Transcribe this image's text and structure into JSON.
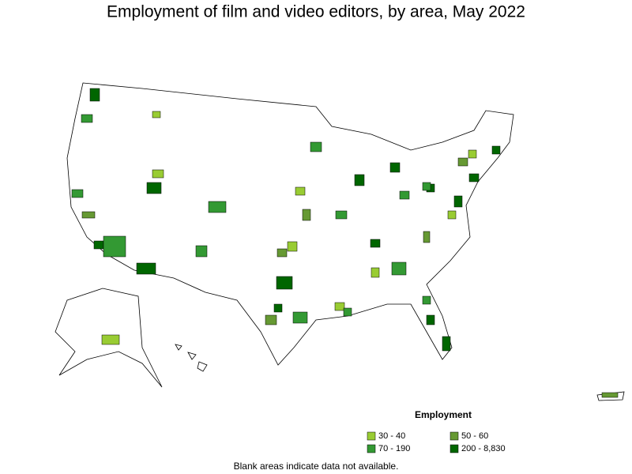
{
  "title": "Employment of film and video editors, by area, May 2022",
  "legend": {
    "title": "Employment",
    "items": [
      {
        "label": "30 - 40",
        "color": "#99cc33"
      },
      {
        "label": "50 - 60",
        "color": "#669933"
      },
      {
        "label": "70 - 190",
        "color": "#339933"
      },
      {
        "label": "200 - 8,830",
        "color": "#006600"
      }
    ]
  },
  "note": "Blank areas indicate data not available."
}
